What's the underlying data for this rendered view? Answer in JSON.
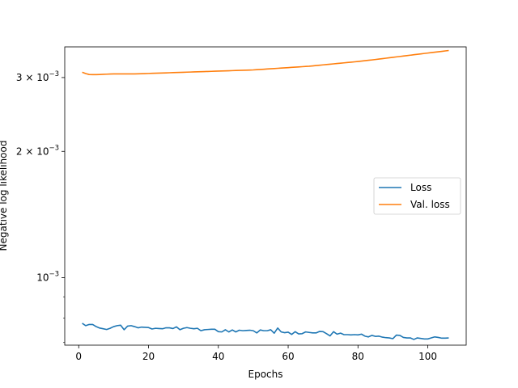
{
  "chart_data": {
    "type": "line",
    "xlabel": "Epochs",
    "ylabel": "Negative log likelihood",
    "xlim": [
      -4,
      111
    ],
    "ylim": [
      0.00069,
      0.00355
    ],
    "yscale": "log",
    "grid": false,
    "legend_position": "center-right",
    "x_ticks": [
      0,
      20,
      40,
      60,
      80,
      100
    ],
    "x_tick_labels": [
      "0",
      "20",
      "40",
      "60",
      "80",
      "100"
    ],
    "y_ticks_major": [
      0.001,
      0.002,
      0.003
    ],
    "y_tick_labels": [
      "10−3",
      "2 × 10−3",
      "3 × 10−3"
    ],
    "y_tick_label_parts": [
      {
        "mantissa": "",
        "base": "10",
        "exp": "−3"
      },
      {
        "mantissa": "2 × ",
        "base": "10",
        "exp": "−3"
      },
      {
        "mantissa": "3 × ",
        "base": "10",
        "exp": "−3"
      }
    ],
    "y_ticks_minor": [
      0.0007,
      0.0008,
      0.0009
    ],
    "series": [
      {
        "name": "Loss",
        "color": "#1f77b4",
        "x": [
          1,
          2,
          3,
          4,
          5,
          6,
          7,
          8,
          9,
          10,
          11,
          12,
          13,
          14,
          15,
          16,
          17,
          18,
          19,
          20,
          21,
          22,
          23,
          24,
          25,
          26,
          27,
          28,
          29,
          30,
          31,
          32,
          33,
          34,
          35,
          36,
          37,
          38,
          39,
          40,
          41,
          42,
          43,
          44,
          45,
          46,
          47,
          48,
          49,
          50,
          51,
          52,
          53,
          54,
          55,
          56,
          57,
          58,
          59,
          60,
          61,
          62,
          63,
          64,
          65,
          66,
          67,
          68,
          69,
          70,
          71,
          72,
          73,
          74,
          75,
          76,
          77,
          78,
          79,
          80,
          81,
          82,
          83,
          84,
          85,
          86,
          87,
          88,
          89,
          90,
          91,
          92,
          93,
          94,
          95,
          96,
          97,
          98,
          99,
          100,
          101,
          102,
          103,
          104,
          105,
          106
        ],
        "y": [
          0.000778,
          0.000768,
          0.000773,
          0.000773,
          0.000764,
          0.000758,
          0.000755,
          0.000752,
          0.000757,
          0.000764,
          0.000768,
          0.00077,
          0.000751,
          0.000766,
          0.000768,
          0.000764,
          0.000759,
          0.000762,
          0.000761,
          0.00076,
          0.000754,
          0.000757,
          0.000756,
          0.000755,
          0.000759,
          0.000759,
          0.000756,
          0.000763,
          0.000751,
          0.000757,
          0.00076,
          0.000757,
          0.000755,
          0.000757,
          0.000747,
          0.000751,
          0.000752,
          0.000753,
          0.000753,
          0.000743,
          0.000742,
          0.000751,
          0.000742,
          0.00075,
          0.000742,
          0.000749,
          0.000747,
          0.000748,
          0.000749,
          0.000747,
          0.000738,
          0.00075,
          0.000747,
          0.000747,
          0.000751,
          0.000737,
          0.000758,
          0.000742,
          0.000739,
          0.000741,
          0.000732,
          0.000743,
          0.000734,
          0.000735,
          0.000742,
          0.00074,
          0.000738,
          0.000738,
          0.000744,
          0.000743,
          0.000735,
          0.000726,
          0.000743,
          0.000733,
          0.000737,
          0.000731,
          0.000731,
          0.00073,
          0.000731,
          0.00073,
          0.000733,
          0.000725,
          0.000722,
          0.000728,
          0.000724,
          0.000725,
          0.000721,
          0.000719,
          0.000718,
          0.000715,
          0.000729,
          0.000728,
          0.00072,
          0.000718,
          0.000718,
          0.000712,
          0.000718,
          0.000716,
          0.000714,
          0.000714,
          0.000718,
          0.000722,
          0.00072,
          0.000717,
          0.000717,
          0.000718
        ]
      },
      {
        "name": "Val. loss",
        "color": "#ff7f0e",
        "x": [
          1,
          2,
          3,
          4,
          5,
          6,
          7,
          8,
          9,
          10,
          11,
          12,
          13,
          14,
          15,
          16,
          17,
          18,
          19,
          20,
          21,
          22,
          23,
          24,
          25,
          26,
          27,
          28,
          29,
          30,
          31,
          32,
          33,
          34,
          35,
          36,
          37,
          38,
          39,
          40,
          41,
          42,
          43,
          44,
          45,
          46,
          47,
          48,
          49,
          50,
          51,
          52,
          53,
          54,
          55,
          56,
          57,
          58,
          59,
          60,
          61,
          62,
          63,
          64,
          65,
          66,
          67,
          68,
          69,
          70,
          71,
          72,
          73,
          74,
          75,
          76,
          77,
          78,
          79,
          80,
          81,
          82,
          83,
          84,
          85,
          86,
          87,
          88,
          89,
          90,
          91,
          92,
          93,
          94,
          95,
          96,
          97,
          98,
          99,
          100,
          101,
          102,
          103,
          104,
          105,
          106
        ],
        "y": [
          0.003088,
          0.003066,
          0.00305,
          0.003048,
          0.003048,
          0.00305,
          0.003053,
          0.003056,
          0.003058,
          0.00306,
          0.00306,
          0.00306,
          0.00306,
          0.00306,
          0.00306,
          0.00306,
          0.003062,
          0.003064,
          0.003066,
          0.003068,
          0.00307,
          0.003072,
          0.003074,
          0.003076,
          0.003078,
          0.00308,
          0.003082,
          0.003084,
          0.003086,
          0.003088,
          0.00309,
          0.003092,
          0.003094,
          0.003096,
          0.003098,
          0.0031,
          0.003102,
          0.003104,
          0.003106,
          0.003108,
          0.00311,
          0.003112,
          0.003114,
          0.003116,
          0.003118,
          0.00312,
          0.003122,
          0.003124,
          0.003126,
          0.003128,
          0.003132,
          0.003136,
          0.00314,
          0.003144,
          0.003148,
          0.003152,
          0.003156,
          0.00316,
          0.003164,
          0.003168,
          0.003172,
          0.003176,
          0.00318,
          0.003184,
          0.003188,
          0.003192,
          0.003198,
          0.003204,
          0.00321,
          0.003216,
          0.003222,
          0.003228,
          0.003234,
          0.00324,
          0.003246,
          0.003252,
          0.003258,
          0.003264,
          0.00327,
          0.003277,
          0.003284,
          0.003291,
          0.003298,
          0.003305,
          0.003312,
          0.00332,
          0.003328,
          0.003336,
          0.003344,
          0.003352,
          0.00336,
          0.003368,
          0.003376,
          0.003384,
          0.003392,
          0.0034,
          0.003408,
          0.003416,
          0.003424,
          0.003432,
          0.00344,
          0.003448,
          0.003456,
          0.003464,
          0.003472,
          0.00348
        ]
      }
    ]
  }
}
